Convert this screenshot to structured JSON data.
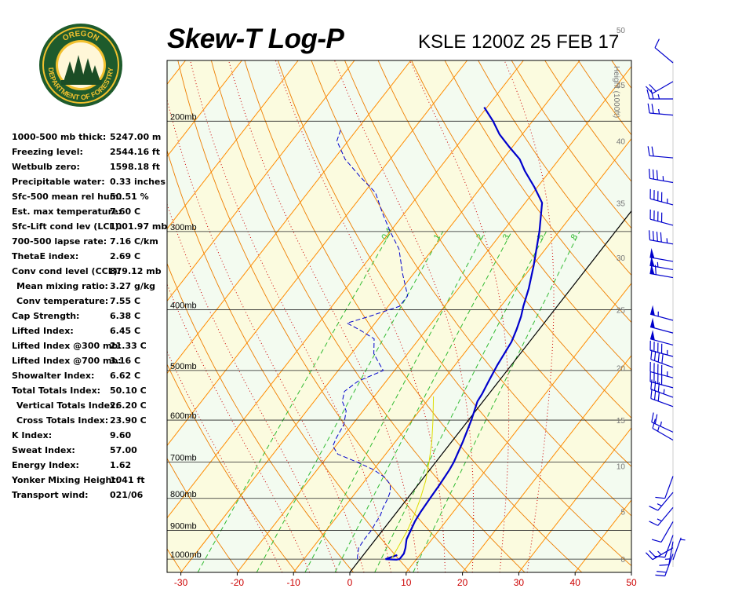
{
  "header": {
    "title": "Skew-T Log-P",
    "station": "KSLE 1200Z 25 FEB 17"
  },
  "logo": {
    "top_text": "OREGON",
    "ring_text": "DEPARTMENT OF FORESTRY",
    "colors": {
      "ring": "#1e5b2c",
      "inner": "#f2c12e",
      "trees": "#1b4d25"
    }
  },
  "stats": [
    {
      "label": "1000-500 mb thick:",
      "value": "5247.00 m",
      "indent": false
    },
    {
      "label": "Freezing level:",
      "value": "2544.16 ft",
      "indent": false
    },
    {
      "label": "Wetbulb zero:",
      "value": "1598.18 ft",
      "indent": false
    },
    {
      "label": "Precipitable water:",
      "value": "0.33 inches",
      "indent": false
    },
    {
      "label": "Sfc-500 mean rel hum:",
      "value": "50.51 %",
      "indent": false
    },
    {
      "label": "Est. max temperature:",
      "value": "7.60 C",
      "indent": false
    },
    {
      "label": "Sfc-Lift cond lev (LCL):",
      "value": "1001.97 mb",
      "indent": false
    },
    {
      "label": "700-500 lapse rate:",
      "value": "7.16 C/km",
      "indent": false
    },
    {
      "label": "ThetaE index:",
      "value": "2.69 C",
      "indent": false
    },
    {
      "label": "Conv cond level (CCL):",
      "value": "879.12 mb",
      "indent": false
    },
    {
      "label": "Mean mixing ratio:",
      "value": "3.27 g/kg",
      "indent": true
    },
    {
      "label": "Conv temperature:",
      "value": "7.55 C",
      "indent": true
    },
    {
      "label": "Cap Strength:",
      "value": "6.38 C",
      "indent": false
    },
    {
      "label": "Lifted Index:",
      "value": "6.45 C",
      "indent": false
    },
    {
      "label": "Lifted Index @300 mb:",
      "value": "21.33 C",
      "indent": false
    },
    {
      "label": "Lifted Index @700 mb:",
      "value": "3.16 C",
      "indent": false
    },
    {
      "label": "Showalter Index:",
      "value": "6.62 C",
      "indent": false
    },
    {
      "label": "Total Totals Index:",
      "value": "50.10 C",
      "indent": false
    },
    {
      "label": "Vertical Totals Index:",
      "value": "26.20 C",
      "indent": true
    },
    {
      "label": "Cross Totals Index:",
      "value": "23.90 C",
      "indent": true
    },
    {
      "label": "K Index:",
      "value": "9.60",
      "indent": false
    },
    {
      "label": "Sweat Index:",
      "value": "57.00",
      "indent": false
    },
    {
      "label": "Energy Index:",
      "value": "1.62",
      "indent": false
    },
    {
      "label": "Yonker Mixing Height:",
      "value": "1041 ft",
      "indent": false
    },
    {
      "label": "Transport wind:",
      "value": "021/06",
      "indent": false
    }
  ],
  "chart_data": {
    "type": "line",
    "subtype": "skew-t log-p",
    "x_axis": {
      "unit": "C",
      "ticks": [
        -30,
        -20,
        -10,
        0,
        10,
        20,
        30,
        40,
        50
      ],
      "range": [
        -31,
        50
      ]
    },
    "y_axis": {
      "unit": "mb",
      "scale": "log",
      "range": [
        1050,
        160
      ],
      "ticks": [
        1000,
        900,
        800,
        700,
        600,
        500,
        400,
        300,
        200
      ],
      "tick_labels": [
        "1000mb",
        "900mb",
        "800mb",
        "700mb",
        "600mb",
        "500mb",
        "400mb",
        "300mb",
        "200mb"
      ]
    },
    "height_axis": {
      "title": "Height (1000ft)",
      "ticks": [
        {
          "label": "0",
          "p": 1000
        },
        {
          "label": "5",
          "p": 840
        },
        {
          "label": "10",
          "p": 710
        },
        {
          "label": "15",
          "p": 600
        },
        {
          "label": "20",
          "p": 495
        },
        {
          "label": "25",
          "p": 400
        },
        {
          "label": "30",
          "p": 330
        },
        {
          "label": "35",
          "p": 270
        },
        {
          "label": "40",
          "p": 215
        },
        {
          "label": "45",
          "p": 175
        },
        {
          "label": "50",
          "p": 143
        }
      ]
    },
    "isotherms_c": [
      -100,
      -90,
      -80,
      -70,
      -60,
      -50,
      -40,
      -30,
      -20,
      -10,
      0,
      10,
      20,
      30,
      40,
      50
    ],
    "dry_adiabats_theta_k": [
      230,
      240,
      250,
      260,
      270,
      280,
      290,
      300,
      310,
      320,
      330,
      340,
      350,
      360,
      370,
      380,
      390,
      400,
      410,
      420,
      430,
      440,
      450,
      460,
      470,
      480,
      490,
      500,
      510,
      520,
      530,
      540
    ],
    "moist_adiabats_c": [
      -15,
      -10,
      -5,
      0,
      5,
      10,
      15,
      20,
      25,
      30
    ],
    "mixing_ratio_lines": {
      "values": [
        0.4,
        1,
        2,
        3,
        5,
        8
      ],
      "labels": [
        "0.4",
        "1",
        "2",
        "3",
        "5",
        "8"
      ],
      "label_pressure": 310
    },
    "series": [
      {
        "color": "#0000cc",
        "style": "solid",
        "points": [
          [
            985,
            6.0
          ],
          [
            995,
            5.0
          ],
          [
            1000,
            4.5
          ],
          [
            1002,
            6.5
          ],
          [
            1000,
            7.0
          ],
          [
            980,
            7.0
          ],
          [
            960,
            6.5
          ],
          [
            930,
            5.5
          ],
          [
            900,
            5.0
          ],
          [
            870,
            4.5
          ],
          [
            840,
            4.2
          ],
          [
            800,
            4.0
          ],
          [
            760,
            3.8
          ],
          [
            720,
            3.5
          ],
          [
            700,
            3.2
          ],
          [
            650,
            2.0
          ],
          [
            600,
            0.5
          ],
          [
            560,
            -1.0
          ],
          [
            545,
            -1.2
          ],
          [
            520,
            -1.8
          ],
          [
            490,
            -2.5
          ],
          [
            450,
            -3.2
          ],
          [
            430,
            -4.0
          ],
          [
            410,
            -5.0
          ],
          [
            395,
            -6.0
          ],
          [
            370,
            -7.5
          ],
          [
            340,
            -9.8
          ],
          [
            300,
            -13.5
          ],
          [
            270,
            -17.0
          ],
          [
            255,
            -20.5
          ],
          [
            240,
            -24.5
          ],
          [
            230,
            -27.0
          ],
          [
            220,
            -30.5
          ],
          [
            210,
            -34.0
          ],
          [
            200,
            -37.0
          ],
          [
            190,
            -40.5
          ]
        ]
      },
      {
        "color": "#0000cc",
        "style": "dashed",
        "points": [
          [
            1000,
            -0.5
          ],
          [
            980,
            -1.2
          ],
          [
            960,
            -1.8
          ],
          [
            930,
            -2.0
          ],
          [
            900,
            -2.0
          ],
          [
            880,
            -2.2
          ],
          [
            850,
            -2.5
          ],
          [
            830,
            -3.0
          ],
          [
            800,
            -3.5
          ],
          [
            780,
            -4.0
          ],
          [
            760,
            -5.0
          ],
          [
            740,
            -7.0
          ],
          [
            720,
            -10.0
          ],
          [
            700,
            -14.0
          ],
          [
            680,
            -18.5
          ],
          [
            660,
            -20.5
          ],
          [
            640,
            -21.0
          ],
          [
            610,
            -21.5
          ],
          [
            580,
            -23.0
          ],
          [
            560,
            -25.0
          ],
          [
            540,
            -26.0
          ],
          [
            520,
            -25.0
          ],
          [
            500,
            -22.0
          ],
          [
            485,
            -24.0
          ],
          [
            470,
            -26.0
          ],
          [
            445,
            -28.0
          ],
          [
            430,
            -32.0
          ],
          [
            420,
            -35.0
          ],
          [
            410,
            -32.0
          ],
          [
            395,
            -28.0
          ],
          [
            380,
            -28.0
          ],
          [
            350,
            -32.0
          ],
          [
            320,
            -36.0
          ],
          [
            300,
            -40.0
          ],
          [
            280,
            -44.0
          ],
          [
            260,
            -48.0
          ],
          [
            245,
            -53.0
          ],
          [
            230,
            -58.0
          ],
          [
            215,
            -62.0
          ],
          [
            205,
            -63.0
          ]
        ]
      },
      {
        "color": "#dddd00",
        "style": "solid",
        "points": [
          [
            998,
            5.5
          ],
          [
            950,
            5.0
          ],
          [
            900,
            4.4
          ],
          [
            850,
            3.5
          ],
          [
            800,
            2.3
          ],
          [
            750,
            0.8
          ],
          [
            700,
            -1.2
          ],
          [
            650,
            -3.5
          ],
          [
            600,
            -6.3
          ],
          [
            550,
            -9.5
          ]
        ]
      }
    ],
    "winds": {
      "column": "right",
      "barbs": [
        {
          "p": 1000,
          "dir_deg": 20,
          "speed_kt": 5
        },
        {
          "p": 975,
          "dir_deg": 200,
          "speed_kt": 20
        },
        {
          "p": 950,
          "dir_deg": 240,
          "speed_kt": 25
        },
        {
          "p": 925,
          "dir_deg": 190,
          "speed_kt": 15
        },
        {
          "p": 900,
          "dir_deg": 200,
          "speed_kt": 10
        },
        {
          "p": 850,
          "dir_deg": 210,
          "speed_kt": 10
        },
        {
          "p": 800,
          "dir_deg": 220,
          "speed_kt": 15
        },
        {
          "p": 750,
          "dir_deg": 220,
          "speed_kt": 15
        },
        {
          "p": 700,
          "dir_deg": 200,
          "speed_kt": 10
        },
        {
          "p": 600,
          "dir_deg": 300,
          "speed_kt": 15
        },
        {
          "p": 580,
          "dir_deg": 295,
          "speed_kt": 25
        },
        {
          "p": 520,
          "dir_deg": 290,
          "speed_kt": 30
        },
        {
          "p": 500,
          "dir_deg": 290,
          "speed_kt": 35
        },
        {
          "p": 480,
          "dir_deg": 285,
          "speed_kt": 40
        },
        {
          "p": 460,
          "dir_deg": 285,
          "speed_kt": 45
        },
        {
          "p": 440,
          "dir_deg": 290,
          "speed_kt": 40
        },
        {
          "p": 420,
          "dir_deg": 285,
          "speed_kt": 45
        },
        {
          "p": 400,
          "dir_deg": 285,
          "speed_kt": 50
        },
        {
          "p": 380,
          "dir_deg": 285,
          "speed_kt": 50
        },
        {
          "p": 360,
          "dir_deg": 285,
          "speed_kt": 55
        },
        {
          "p": 300,
          "dir_deg": 280,
          "speed_kt": 60
        },
        {
          "p": 290,
          "dir_deg": 280,
          "speed_kt": 55
        },
        {
          "p": 280,
          "dir_deg": 280,
          "speed_kt": 50
        },
        {
          "p": 260,
          "dir_deg": 280,
          "speed_kt": 45
        },
        {
          "p": 240,
          "dir_deg": 285,
          "speed_kt": 40
        },
        {
          "p": 220,
          "dir_deg": 285,
          "speed_kt": 45
        },
        {
          "p": 200,
          "dir_deg": 280,
          "speed_kt": 35
        },
        {
          "p": 180,
          "dir_deg": 275,
          "speed_kt": 20
        },
        {
          "p": 150,
          "dir_deg": 275,
          "speed_kt": 25
        },
        {
          "p": 140,
          "dir_deg": 270,
          "speed_kt": 25
        },
        {
          "p": 130,
          "dir_deg": 240,
          "speed_kt": 20
        },
        {
          "p": 120,
          "dir_deg": 310,
          "speed_kt": 10
        }
      ]
    },
    "colors": {
      "isotherm": "#ff8c00",
      "dry_adiabat": "#ee7e00",
      "moist_adiabat": "#cc0000",
      "mixing_ratio": "#33bb33",
      "band_light": "#f3fbf0",
      "band_yellow": "#fbfbdf",
      "isobar": "#222222",
      "temperature": "#0000cc",
      "dewpoint": "#0000cc",
      "parcel": "#dddd00",
      "freezing_line": "#000000",
      "height_label": "#777777",
      "x_tick_label": "#cc0000"
    }
  }
}
